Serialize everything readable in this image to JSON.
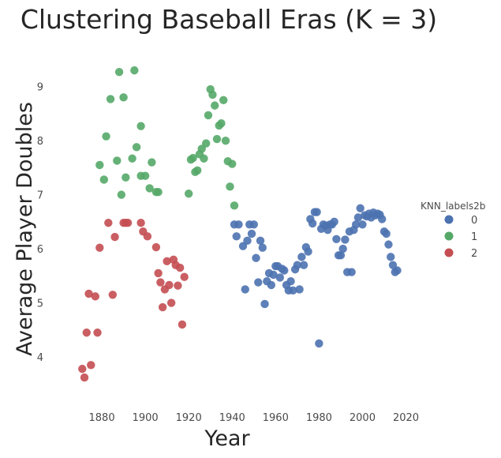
{
  "chart_data": {
    "type": "scatter",
    "title": "Clustering Baseball Eras (K = 3)",
    "xlabel": "Year",
    "ylabel": "Average Player Doubles",
    "xlim": [
      1864,
      2022
    ],
    "ylim": [
      3.3,
      9.55
    ],
    "xticks": [
      1880,
      1900,
      1920,
      1940,
      1960,
      1980,
      2000,
      2020
    ],
    "yticks": [
      4,
      5,
      6,
      7,
      8,
      9
    ],
    "grid": false,
    "legend": {
      "title": "KNN_labels2b",
      "placement": "right"
    },
    "series": [
      {
        "name": "0",
        "color": "#4C72B0",
        "points": [
          [
            1941,
            6.45
          ],
          [
            1942,
            6.23
          ],
          [
            1943,
            6.45
          ],
          [
            1945,
            6.05
          ],
          [
            1946,
            5.25
          ],
          [
            1947,
            6.15
          ],
          [
            1948,
            6.45
          ],
          [
            1949,
            6.28
          ],
          [
            1950,
            6.45
          ],
          [
            1951,
            5.83
          ],
          [
            1952,
            5.38
          ],
          [
            1953,
            6.15
          ],
          [
            1954,
            6.02
          ],
          [
            1955,
            4.98
          ],
          [
            1956,
            5.4
          ],
          [
            1957,
            5.55
          ],
          [
            1958,
            5.33
          ],
          [
            1959,
            5.52
          ],
          [
            1960,
            5.68
          ],
          [
            1961,
            5.68
          ],
          [
            1962,
            5.47
          ],
          [
            1963,
            5.63
          ],
          [
            1964,
            5.6
          ],
          [
            1965,
            5.33
          ],
          [
            1966,
            5.23
          ],
          [
            1967,
            5.4
          ],
          [
            1968,
            5.23
          ],
          [
            1969,
            5.62
          ],
          [
            1970,
            5.7
          ],
          [
            1971,
            5.25
          ],
          [
            1972,
            5.85
          ],
          [
            1973,
            5.7
          ],
          [
            1974,
            6.03
          ],
          [
            1975,
            5.95
          ],
          [
            1976,
            6.55
          ],
          [
            1977,
            6.47
          ],
          [
            1978,
            6.68
          ],
          [
            1979,
            6.68
          ],
          [
            1980,
            4.25
          ],
          [
            1981,
            6.37
          ],
          [
            1982,
            6.45
          ],
          [
            1983,
            6.43
          ],
          [
            1984,
            6.35
          ],
          [
            1985,
            6.45
          ],
          [
            1986,
            6.45
          ],
          [
            1987,
            6.5
          ],
          [
            1988,
            6.18
          ],
          [
            1989,
            5.88
          ],
          [
            1990,
            5.88
          ],
          [
            1991,
            6.0
          ],
          [
            1992,
            6.17
          ],
          [
            1993,
            5.57
          ],
          [
            1994,
            6.32
          ],
          [
            1995,
            5.57
          ],
          [
            1996,
            6.35
          ],
          [
            1997,
            6.45
          ],
          [
            1998,
            6.58
          ],
          [
            1999,
            6.75
          ],
          [
            2000,
            6.45
          ],
          [
            2001,
            6.62
          ],
          [
            2002,
            6.6
          ],
          [
            2003,
            6.65
          ],
          [
            2004,
            6.58
          ],
          [
            2005,
            6.67
          ],
          [
            2006,
            6.62
          ],
          [
            2007,
            6.65
          ],
          [
            2008,
            6.63
          ],
          [
            2009,
            6.55
          ],
          [
            2010,
            6.32
          ],
          [
            2011,
            6.28
          ],
          [
            2012,
            6.08
          ],
          [
            2013,
            5.85
          ],
          [
            2014,
            5.7
          ],
          [
            2015,
            5.57
          ],
          [
            2016,
            5.6
          ]
        ]
      },
      {
        "name": "1",
        "color": "#55A868",
        "points": [
          [
            1879,
            7.55
          ],
          [
            1881,
            7.28
          ],
          [
            1882,
            8.08
          ],
          [
            1884,
            8.77
          ],
          [
            1887,
            7.63
          ],
          [
            1888,
            9.27
          ],
          [
            1889,
            7.0
          ],
          [
            1890,
            8.8
          ],
          [
            1891,
            7.32
          ],
          [
            1894,
            7.67
          ],
          [
            1895,
            9.3
          ],
          [
            1896,
            7.88
          ],
          [
            1898,
            8.27
          ],
          [
            1898,
            7.35
          ],
          [
            1900,
            7.35
          ],
          [
            1902,
            7.12
          ],
          [
            1903,
            7.6
          ],
          [
            1905,
            7.05
          ],
          [
            1906,
            7.05
          ],
          [
            1920,
            7.02
          ],
          [
            1921,
            7.65
          ],
          [
            1922,
            7.68
          ],
          [
            1923,
            7.42
          ],
          [
            1924,
            7.45
          ],
          [
            1925,
            7.75
          ],
          [
            1926,
            7.85
          ],
          [
            1927,
            7.67
          ],
          [
            1928,
            7.95
          ],
          [
            1929,
            8.47
          ],
          [
            1930,
            8.95
          ],
          [
            1931,
            8.85
          ],
          [
            1932,
            8.65
          ],
          [
            1933,
            8.03
          ],
          [
            1934,
            8.28
          ],
          [
            1935,
            8.32
          ],
          [
            1936,
            8.75
          ],
          [
            1937,
            8.0
          ],
          [
            1938,
            7.62
          ],
          [
            1939,
            7.15
          ],
          [
            1940,
            7.57
          ],
          [
            1941,
            6.8
          ]
        ]
      },
      {
        "name": "2",
        "color": "#C44E52",
        "points": [
          [
            1871,
            3.78
          ],
          [
            1872,
            3.62
          ],
          [
            1873,
            4.45
          ],
          [
            1874,
            5.17
          ],
          [
            1875,
            3.85
          ],
          [
            1877,
            5.12
          ],
          [
            1878,
            4.45
          ],
          [
            1879,
            6.02
          ],
          [
            1883,
            6.48
          ],
          [
            1885,
            5.15
          ],
          [
            1886,
            6.22
          ],
          [
            1890,
            6.48
          ],
          [
            1891,
            6.48
          ],
          [
            1892,
            6.48
          ],
          [
            1898,
            6.48
          ],
          [
            1899,
            6.32
          ],
          [
            1901,
            6.23
          ],
          [
            1905,
            6.03
          ],
          [
            1906,
            5.55
          ],
          [
            1907,
            5.38
          ],
          [
            1908,
            4.92
          ],
          [
            1909,
            5.25
          ],
          [
            1910,
            5.77
          ],
          [
            1911,
            5.33
          ],
          [
            1912,
            5.0
          ],
          [
            1913,
            5.8
          ],
          [
            1914,
            5.7
          ],
          [
            1915,
            5.32
          ],
          [
            1916,
            5.65
          ],
          [
            1917,
            4.6
          ],
          [
            1918,
            5.48
          ]
        ]
      }
    ]
  }
}
